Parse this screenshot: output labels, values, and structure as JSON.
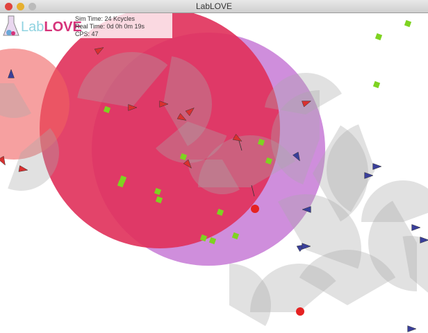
{
  "window": {
    "title": "LabLOVE"
  },
  "logo": {
    "lab": "Lab",
    "love": "LOVE"
  },
  "stats": {
    "sim_time": "Sim Time: 24 Kcycles",
    "real_time": "Real Time: 0d 0h 0m 19s",
    "cps": "CPS: 47"
  },
  "colors": {
    "red_zone": "#e0305a",
    "purple_zone": "#c77ad6",
    "food": "#7ed321",
    "predator": "#d93030",
    "prey": "#3a3f9a",
    "fov": "#a8a8a8"
  }
}
